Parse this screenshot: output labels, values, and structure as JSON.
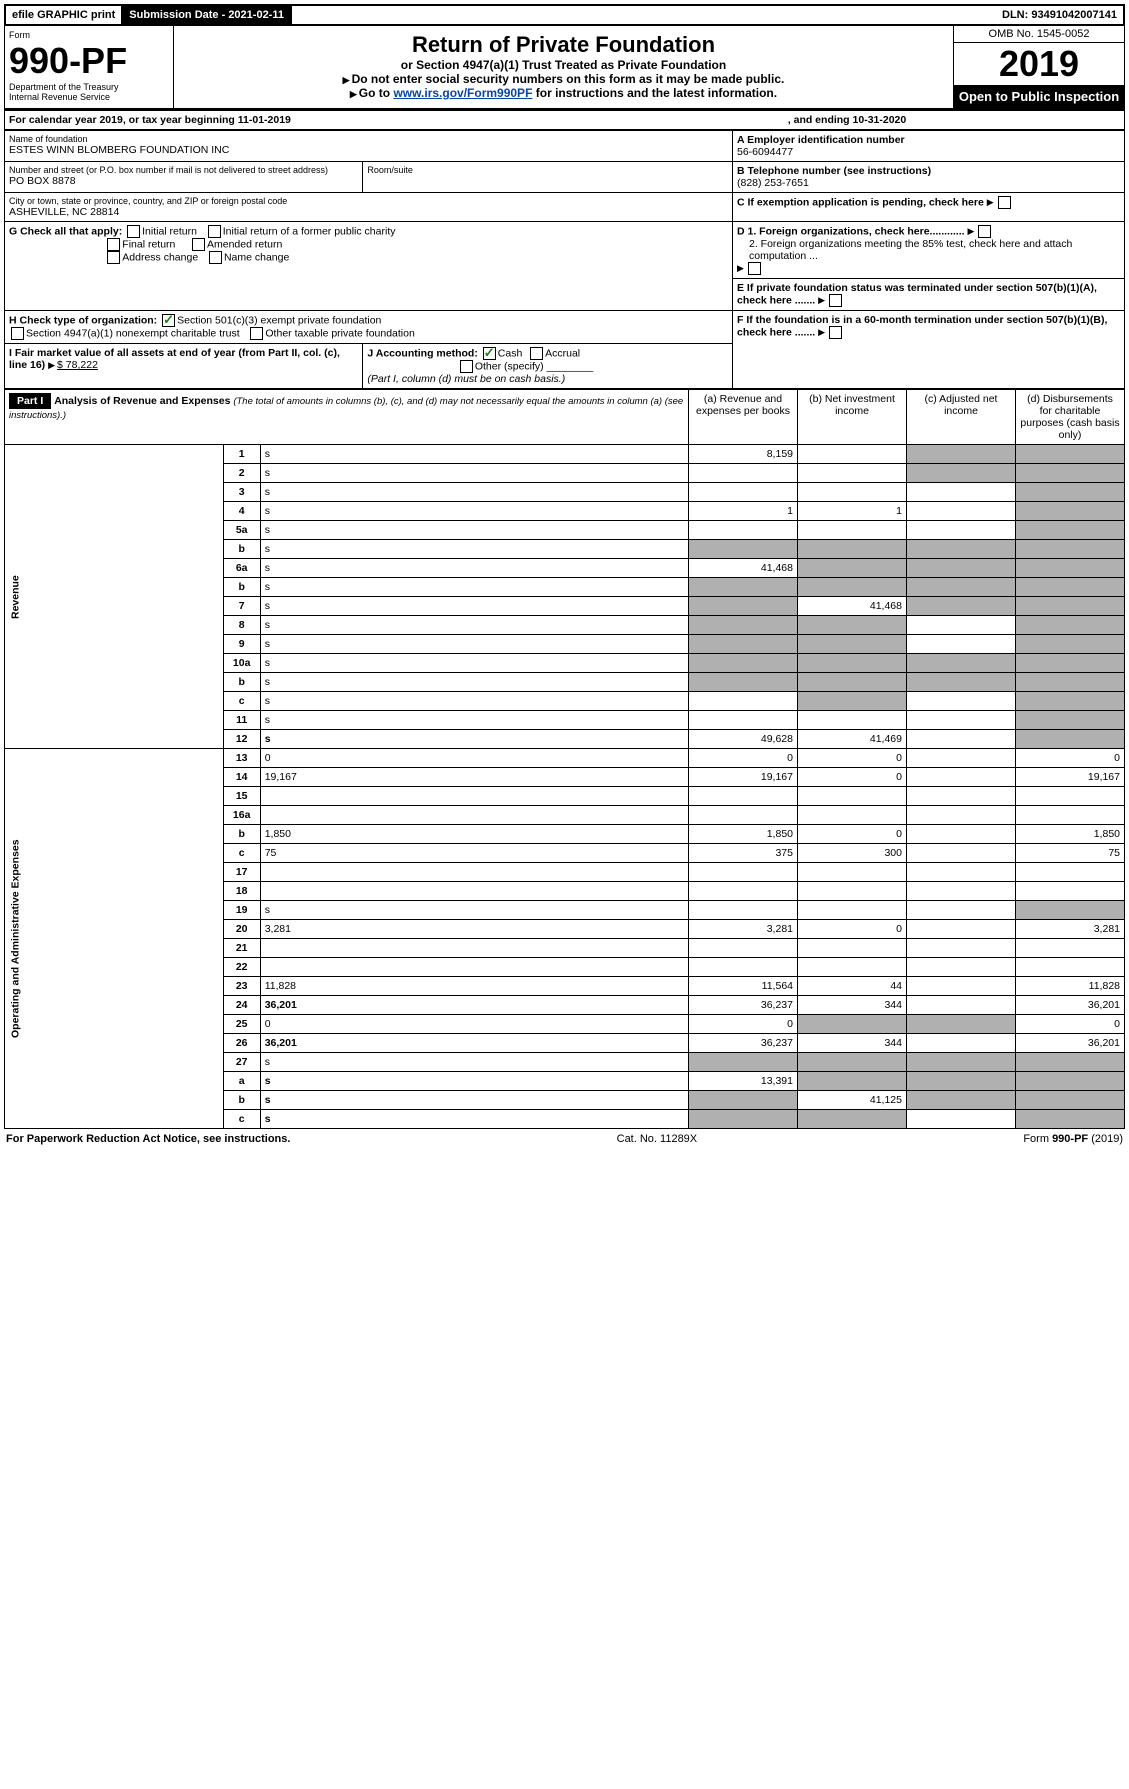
{
  "topbar": {
    "efile": "efile GRAPHIC print",
    "sub_label": "Submission Date - 2021-02-11",
    "dln": "DLN: 93491042007141"
  },
  "header": {
    "form_word": "Form",
    "form_num": "990-PF",
    "dept": "Department of the Treasury",
    "irs": "Internal Revenue Service",
    "title": "Return of Private Foundation",
    "subtitle": "or Section 4947(a)(1) Trust Treated as Private Foundation",
    "note1": "Do not enter social security numbers on this form as it may be made public.",
    "note2_pre": "Go to ",
    "note2_link": "www.irs.gov/Form990PF",
    "note2_post": " for instructions and the latest information.",
    "omb": "OMB No. 1545-0052",
    "year": "2019",
    "open": "Open to Public Inspection"
  },
  "cal": {
    "line": "For calendar year 2019, or tax year beginning 11-01-2019",
    "end": ", and ending 10-31-2020"
  },
  "info": {
    "name_lbl": "Name of foundation",
    "name": "ESTES WINN BLOMBERG FOUNDATION INC",
    "addr_lbl": "Number and street (or P.O. box number if mail is not delivered to street address)",
    "addr": "PO BOX 8878",
    "room_lbl": "Room/suite",
    "city_lbl": "City or town, state or province, country, and ZIP or foreign postal code",
    "city": "ASHEVILLE, NC  28814",
    "a_lbl": "A Employer identification number",
    "a_val": "56-6094477",
    "b_lbl": "B Telephone number (see instructions)",
    "b_val": "(828) 253-7651",
    "c_lbl": "C If exemption application is pending, check here",
    "d1": "D 1. Foreign organizations, check here............",
    "d2": "2. Foreign organizations meeting the 85% test, check here and attach computation ...",
    "e": "E  If private foundation status was terminated under section 507(b)(1)(A), check here .......",
    "f": "F  If the foundation is in a 60-month termination under section 507(b)(1)(B), check here ......."
  },
  "g": {
    "label": "G Check all that apply:",
    "opts": [
      "Initial return",
      "Initial return of a former public charity",
      "Final return",
      "Amended return",
      "Address change",
      "Name change"
    ]
  },
  "h": {
    "label": "H Check type of organization:",
    "o1": "Section 501(c)(3) exempt private foundation",
    "o2": "Section 4947(a)(1) nonexempt charitable trust",
    "o3": "Other taxable private foundation"
  },
  "i": {
    "label": "I Fair market value of all assets at end of year (from Part II, col. (c), line 16)",
    "val": "$  78,222"
  },
  "j": {
    "label": "J Accounting method:",
    "cash": "Cash",
    "accrual": "Accrual",
    "other": "Other (specify)",
    "note": "(Part I, column (d) must be on cash basis.)"
  },
  "part1": {
    "hdr": "Part I",
    "title": "Analysis of Revenue and Expenses",
    "title_note": "(The total of amounts in columns (b), (c), and (d) may not necessarily equal the amounts in column (a) (see instructions).)",
    "col_a": "(a)   Revenue and expenses per books",
    "col_b": "(b)  Net investment income",
    "col_c": "(c)  Adjusted net income",
    "col_d": "(d)  Disbursements for charitable purposes (cash basis only)"
  },
  "side": {
    "rev": "Revenue",
    "exp": "Operating and Administrative Expenses"
  },
  "rows": [
    {
      "n": "1",
      "d": "s",
      "a": "8,159",
      "b": "",
      "c": "s"
    },
    {
      "n": "2",
      "d": "s",
      "a": "",
      "b": "",
      "c": "s",
      "nobold": true
    },
    {
      "n": "3",
      "d": "s",
      "a": "",
      "b": "",
      "c": ""
    },
    {
      "n": "4",
      "d": "s",
      "a": "1",
      "b": "1",
      "c": ""
    },
    {
      "n": "5a",
      "d": "s",
      "a": "",
      "b": "",
      "c": ""
    },
    {
      "n": "b",
      "d": "s",
      "a": "s",
      "b": "s",
      "c": "s"
    },
    {
      "n": "6a",
      "d": "s",
      "a": "41,468",
      "b": "s",
      "c": "s"
    },
    {
      "n": "b",
      "d": "s",
      "a": "s",
      "b": "s",
      "c": "s"
    },
    {
      "n": "7",
      "d": "s",
      "a": "s",
      "b": "41,468",
      "c": "s"
    },
    {
      "n": "8",
      "d": "s",
      "a": "s",
      "b": "s",
      "c": ""
    },
    {
      "n": "9",
      "d": "s",
      "a": "s",
      "b": "s",
      "c": ""
    },
    {
      "n": "10a",
      "d": "s",
      "a": "s",
      "b": "s",
      "c": "s"
    },
    {
      "n": "b",
      "d": "s",
      "a": "s",
      "b": "s",
      "c": "s"
    },
    {
      "n": "c",
      "d": "s",
      "a": "",
      "b": "s",
      "c": ""
    },
    {
      "n": "11",
      "d": "s",
      "a": "",
      "b": "",
      "c": ""
    },
    {
      "n": "12",
      "d": "s",
      "a": "49,628",
      "b": "41,469",
      "c": "",
      "bold": true
    }
  ],
  "exp_rows": [
    {
      "n": "13",
      "d": "0",
      "a": "0",
      "b": "0",
      "c": ""
    },
    {
      "n": "14",
      "d": "19,167",
      "a": "19,167",
      "b": "0",
      "c": ""
    },
    {
      "n": "15",
      "d": "",
      "a": "",
      "b": "",
      "c": ""
    },
    {
      "n": "16a",
      "d": "",
      "a": "",
      "b": "",
      "c": ""
    },
    {
      "n": "b",
      "d": "1,850",
      "a": "1,850",
      "b": "0",
      "c": ""
    },
    {
      "n": "c",
      "d": "75",
      "a": "375",
      "b": "300",
      "c": ""
    },
    {
      "n": "17",
      "d": "",
      "a": "",
      "b": "",
      "c": ""
    },
    {
      "n": "18",
      "d": "",
      "a": "",
      "b": "",
      "c": ""
    },
    {
      "n": "19",
      "d": "s",
      "a": "",
      "b": "",
      "c": ""
    },
    {
      "n": "20",
      "d": "3,281",
      "a": "3,281",
      "b": "0",
      "c": ""
    },
    {
      "n": "21",
      "d": "",
      "a": "",
      "b": "",
      "c": ""
    },
    {
      "n": "22",
      "d": "",
      "a": "",
      "b": "",
      "c": ""
    },
    {
      "n": "23",
      "d": "11,828",
      "a": "11,564",
      "b": "44",
      "c": ""
    },
    {
      "n": "24",
      "d": "36,201",
      "a": "36,237",
      "b": "344",
      "c": "",
      "bold": true
    },
    {
      "n": "25",
      "d": "0",
      "a": "0",
      "b": "s",
      "c": "s"
    },
    {
      "n": "26",
      "d": "36,201",
      "a": "36,237",
      "b": "344",
      "c": "",
      "bold": true
    },
    {
      "n": "27",
      "d": "s",
      "a": "s",
      "b": "s",
      "c": "s"
    },
    {
      "n": "a",
      "d": "s",
      "a": "13,391",
      "b": "s",
      "c": "s",
      "bold": true
    },
    {
      "n": "b",
      "d": "s",
      "a": "s",
      "b": "41,125",
      "c": "s",
      "bold": true
    },
    {
      "n": "c",
      "d": "s",
      "a": "s",
      "b": "s",
      "c": "",
      "bold": true
    }
  ],
  "footer": {
    "left": "For Paperwork Reduction Act Notice, see instructions.",
    "mid": "Cat. No. 11289X",
    "right": "Form 990-PF (2019)"
  }
}
